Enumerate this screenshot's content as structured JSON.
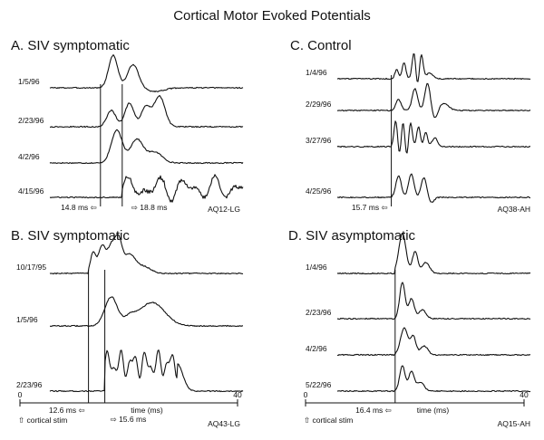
{
  "figure_title": "Cortical Motor Evoked Potentials",
  "axis_label": "time (ms)",
  "stim_label": "cortical stim",
  "chart_data": [
    {
      "type": "line",
      "panel": "A",
      "title": "A.  SIV symptomatic",
      "id_label": "AQ12-LG",
      "xlabel": "",
      "xlim": [
        0,
        40
      ],
      "series": [
        {
          "name": "1/5/96",
          "onset_ms": 14.8
        },
        {
          "name": "2/23/96",
          "onset_ms": 14.8
        },
        {
          "name": "4/2/96",
          "onset_ms": 14.8
        },
        {
          "name": "4/15/96",
          "onset_ms": 18.8
        }
      ],
      "latencies": [
        {
          "label": "14.8 ms",
          "value": 14.8
        },
        {
          "label": "18.8 ms",
          "value": 18.8
        }
      ]
    },
    {
      "type": "line",
      "panel": "B",
      "title": "B.  SIV symptomatic",
      "id_label": "AQ43-LG",
      "xlabel": "time (ms)",
      "xlim": [
        0,
        40
      ],
      "x_ticks": [
        "0",
        "40"
      ],
      "series": [
        {
          "name": "10/17/95",
          "onset_ms": 12.6
        },
        {
          "name": "1/5/96",
          "onset_ms": 12.6
        },
        {
          "name": "2/23/96",
          "onset_ms": 15.6
        }
      ],
      "latencies": [
        {
          "label": "12.6 ms",
          "value": 12.6
        },
        {
          "label": "15.6 ms",
          "value": 15.6
        }
      ]
    },
    {
      "type": "line",
      "panel": "C",
      "title": "C.  Control",
      "id_label": "AQ38-AH",
      "xlabel": "",
      "xlim": [
        0,
        40
      ],
      "series": [
        {
          "name": "1/4/96",
          "onset_ms": 15.7
        },
        {
          "name": "2/29/96",
          "onset_ms": 15.7
        },
        {
          "name": "3/27/96",
          "onset_ms": 15.7
        },
        {
          "name": "4/25/96",
          "onset_ms": 15.7
        }
      ],
      "latencies": [
        {
          "label": "15.7 ms",
          "value": 15.7
        }
      ]
    },
    {
      "type": "line",
      "panel": "D",
      "title": "D.  SIV asymptomatic",
      "id_label": "AQ15-AH",
      "xlabel": "time (ms)",
      "xlim": [
        0,
        40
      ],
      "x_ticks": [
        "0",
        "40"
      ],
      "series": [
        {
          "name": "1/4/96",
          "onset_ms": 16.4
        },
        {
          "name": "2/23/96",
          "onset_ms": 16.4
        },
        {
          "name": "4/2/96",
          "onset_ms": 16.4
        },
        {
          "name": "5/22/96",
          "onset_ms": 16.4
        }
      ],
      "latencies": [
        {
          "label": "16.4 ms",
          "value": 16.4
        }
      ]
    }
  ]
}
